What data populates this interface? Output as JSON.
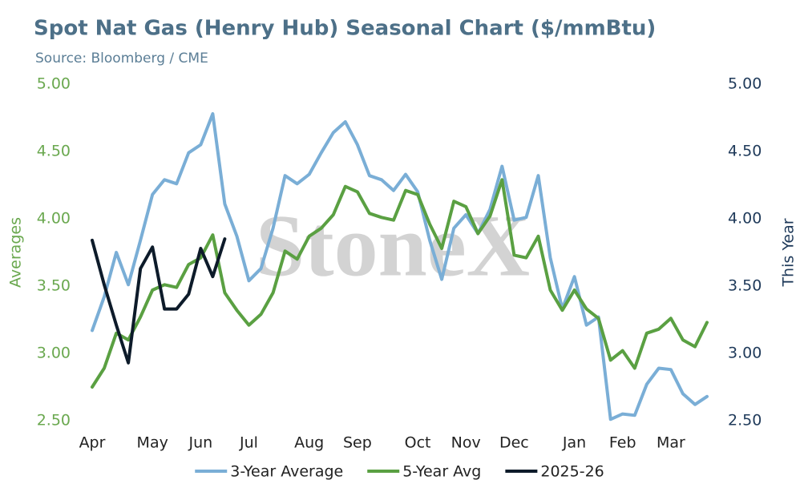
{
  "chart_data": {
    "type": "line",
    "title": "Spot Nat Gas (Henry Hub) Seasonal Chart ($/mmBtu)",
    "subtitle": "Source: Bloomberg / CME",
    "watermark": "StoneX",
    "ylabel": "Averages",
    "y2label": "This Year",
    "categories": [
      "Apr",
      null,
      null,
      null,
      null,
      "May",
      null,
      null,
      null,
      "Jun",
      null,
      null,
      null,
      "Jul",
      null,
      null,
      null,
      null,
      "Aug",
      null,
      null,
      null,
      "Sep",
      null,
      null,
      null,
      null,
      "Oct",
      null,
      null,
      null,
      "Nov",
      null,
      null,
      null,
      "Dec",
      null,
      null,
      null,
      null,
      "Jan",
      null,
      null,
      null,
      "Feb",
      null,
      null,
      null,
      "Mar",
      null,
      null,
      null
    ],
    "ylim": [
      2.5,
      5.0
    ],
    "yticks": [
      {
        "value": 2.5,
        "label": "2.50"
      },
      {
        "value": 3.0,
        "label": "3.00"
      },
      {
        "value": 3.5,
        "label": "3.50"
      },
      {
        "value": 4.0,
        "label": "4.00"
      },
      {
        "value": 4.5,
        "label": "4.50"
      },
      {
        "value": 5.0,
        "label": "5.00"
      }
    ],
    "y2lim": [
      2.5,
      5.0
    ],
    "y2ticks": [
      {
        "value": 2.5,
        "label": "2.50"
      },
      {
        "value": 3.0,
        "label": "3.00"
      },
      {
        "value": 3.5,
        "label": "3.50"
      },
      {
        "value": 4.0,
        "label": "4.00"
      },
      {
        "value": 4.5,
        "label": "4.50"
      },
      {
        "value": 5.0,
        "label": "5.00"
      }
    ],
    "grid": false,
    "legend": "bottom",
    "series": [
      {
        "name": "3-Year Average",
        "color": "#7aaed6",
        "values": [
          3.17,
          3.42,
          3.75,
          3.51,
          3.84,
          4.18,
          4.29,
          4.26,
          4.49,
          4.55,
          4.78,
          4.11,
          3.87,
          3.54,
          3.63,
          3.93,
          4.32,
          4.26,
          4.33,
          4.49,
          4.64,
          4.72,
          4.55,
          4.32,
          4.29,
          4.21,
          4.33,
          4.2,
          3.84,
          3.55,
          3.93,
          4.03,
          3.89,
          4.07,
          4.39,
          3.99,
          4.01,
          4.32,
          3.71,
          3.33,
          3.57,
          3.21,
          3.27,
          2.51,
          2.55,
          2.54,
          2.77,
          2.89,
          2.88,
          2.7,
          2.62,
          2.68
        ]
      },
      {
        "name": "5-Year Avg",
        "color": "#5aa042",
        "values": [
          2.75,
          2.89,
          3.15,
          3.1,
          3.27,
          3.47,
          3.51,
          3.49,
          3.66,
          3.71,
          3.88,
          3.45,
          3.32,
          3.21,
          3.29,
          3.45,
          3.76,
          3.7,
          3.87,
          3.93,
          4.03,
          4.24,
          4.2,
          4.04,
          4.01,
          3.99,
          4.21,
          4.18,
          3.96,
          3.78,
          4.13,
          4.09,
          3.89,
          4.02,
          4.29,
          3.73,
          3.71,
          3.87,
          3.47,
          3.32,
          3.47,
          3.33,
          3.26,
          2.95,
          3.02,
          2.89,
          3.15,
          3.18,
          3.26,
          3.1,
          3.05,
          3.23
        ]
      },
      {
        "name": "2025-26",
        "color": "#0d1b2a",
        "axis": "y2",
        "values": [
          3.84,
          3.51,
          3.21,
          2.93,
          3.63,
          3.79,
          3.33,
          3.33,
          3.44,
          3.78,
          3.57,
          3.85,
          null,
          null,
          null,
          null,
          null,
          null,
          null,
          null,
          null,
          null,
          null,
          null,
          null,
          null,
          null,
          null,
          null,
          null,
          null,
          null,
          null,
          null,
          null,
          null,
          null,
          null,
          null,
          null,
          null,
          null,
          null,
          null,
          null,
          null,
          null,
          null,
          null,
          null,
          null,
          null
        ]
      }
    ]
  }
}
